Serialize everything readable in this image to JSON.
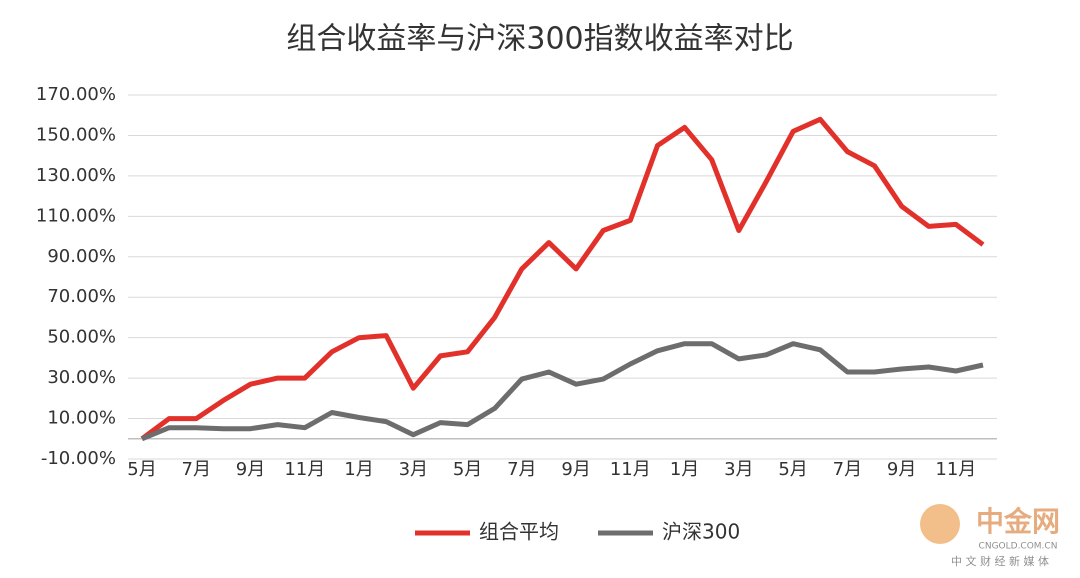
{
  "chart_data": {
    "type": "line",
    "title": "组合收益率与沪深300指数收益率对比",
    "categories": [
      "5月",
      null,
      "7月",
      null,
      "9月",
      null,
      "11月",
      null,
      "1月",
      null,
      "3月",
      null,
      "5月",
      null,
      "7月",
      null,
      "9月",
      null,
      "11月",
      null,
      "1月",
      null,
      "3月",
      null,
      "5月",
      null,
      "7月",
      null,
      "9月",
      null,
      "11月",
      null
    ],
    "series": [
      {
        "name": "组合平均",
        "color": "#e2312a",
        "values": [
          0,
          10,
          10,
          19,
          27,
          30,
          30,
          43,
          50,
          51,
          25,
          41,
          43,
          60,
          84,
          97,
          84,
          103,
          108,
          145,
          154,
          138,
          103,
          127,
          152,
          158,
          142,
          135,
          115,
          105,
          106,
          96
        ]
      },
      {
        "name": "沪深300",
        "color": "#6d6d6d",
        "values": [
          0,
          5.5,
          5.5,
          5,
          5,
          7,
          5.5,
          13,
          10.5,
          8.5,
          2,
          8,
          7,
          15,
          29.5,
          33,
          27,
          29.5,
          37,
          43.5,
          47,
          47,
          39.5,
          41.5,
          47,
          44,
          33,
          33,
          34.5,
          35.5,
          33.5,
          36.5
        ]
      }
    ],
    "ylim": [
      -10,
      170
    ],
    "yticks": [
      {
        "value": -10,
        "label": "-10.00%"
      },
      {
        "value": 10,
        "label": "10.00%"
      },
      {
        "value": 30,
        "label": "30.00%"
      },
      {
        "value": 50,
        "label": "50.00%"
      },
      {
        "value": 70,
        "label": "70.00%"
      },
      {
        "value": 90,
        "label": "90.00%"
      },
      {
        "value": 110,
        "label": "110.00%"
      },
      {
        "value": 130,
        "label": "130.00%"
      },
      {
        "value": 150,
        "label": "150.00%"
      },
      {
        "value": 170,
        "label": "170.00%"
      }
    ],
    "grid": true,
    "legend": "bottom"
  },
  "watermark": {
    "brand": "中金网",
    "url": "CNGOLD.COM.CN",
    "slogan": "中 文 财 经 新 媒 体"
  }
}
